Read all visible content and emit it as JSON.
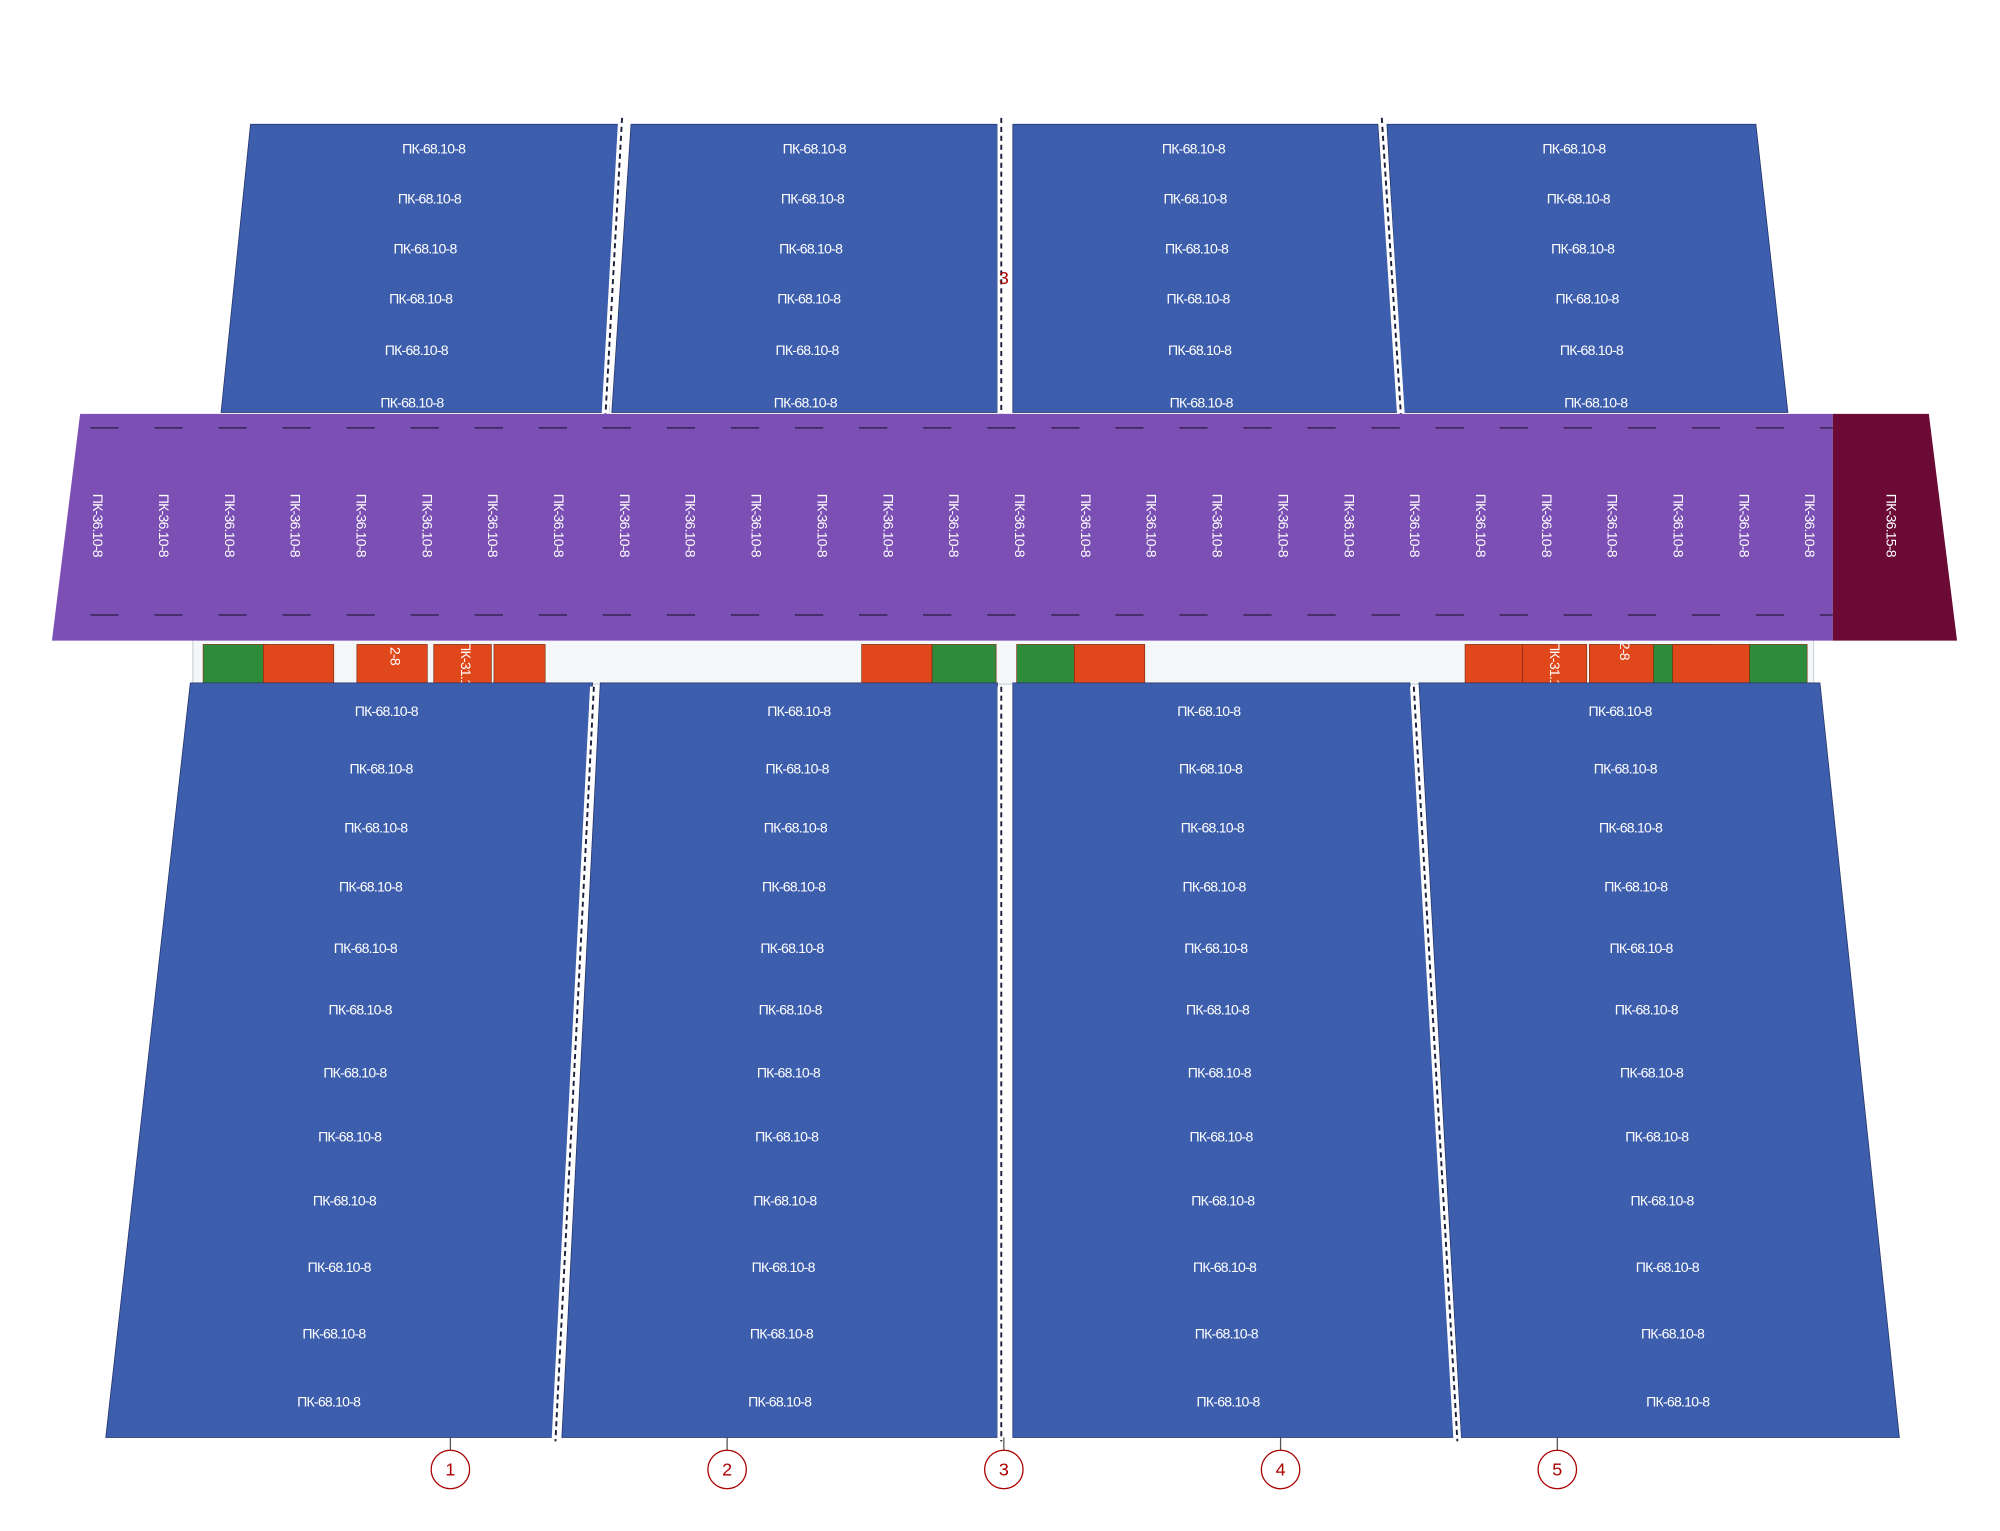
{
  "top_panels": [
    {
      "labels": [
        "ПК-68.10-8",
        "ПК-68.10-8",
        "ПК-68.10-8",
        "ПК-68.10-8",
        "ПК-68.10-8",
        "ПК-68.10-8"
      ]
    },
    {
      "labels": [
        "ПК-68.10-8",
        "ПК-68.10-8",
        "ПК-68.10-8",
        "ПК-68.10-8",
        "ПК-68.10-8",
        "ПК-68.10-8"
      ]
    },
    {
      "labels": [
        "ПК-68.10-8",
        "ПК-68.10-8",
        "ПК-68.10-8",
        "ПК-68.10-8",
        "ПК-68.10-8",
        "ПК-68.10-8"
      ]
    },
    {
      "labels": [
        "ПК-68.10-8",
        "ПК-68.10-8",
        "ПК-68.10-8",
        "ПК-68.10-8",
        "ПК-68.10-8",
        "ПК-68.10-8"
      ]
    }
  ],
  "band": {
    "labels": [
      "ПК-36.10-8",
      "ПК-36.10-8",
      "ПК-36.10-8",
      "ПК-36.10-8",
      "ПК-36.10-8",
      "ПК-36.10-8",
      "ПК-36.10-8",
      "ПК-36.10-8",
      "ПК-36.10-8",
      "ПК-36.10-8",
      "ПК-36.10-8",
      "ПК-36.10-8",
      "ПК-36.10-8",
      "ПК-36.10-8",
      "ПК-36.10-8",
      "ПК-36.10-8",
      "ПК-36.10-8",
      "ПК-36.10-8",
      "ПК-36.10-8",
      "ПК-36.10-8",
      "ПК-36.10-8",
      "ПК-36.10-8",
      "ПК-36.10-8",
      "ПК-36.10-8",
      "ПК-36.10-8",
      "ПК-36.10-8",
      "ПК-36.10-8"
    ],
    "end_label": "ПК-36.15-8"
  },
  "bottom_panels": [
    {
      "labels": [
        "ПК-68.10-8",
        "ПК-68.10-8",
        "ПК-68.10-8",
        "ПК-68.10-8",
        "ПК-68.10-8",
        "ПК-68.10-8",
        "ПК-68.10-8",
        "ПК-68.10-8",
        "ПК-68.10-8",
        "ПК-68.10-8",
        "ПК-68.10-8",
        "ПК-68.10-8"
      ]
    },
    {
      "labels": [
        "ПК-68.10-8",
        "ПК-68.10-8",
        "ПК-68.10-8",
        "ПК-68.10-8",
        "ПК-68.10-8",
        "ПК-68.10-8",
        "ПК-68.10-8",
        "ПК-68.10-8",
        "ПК-68.10-8",
        "ПК-68.10-8",
        "ПК-68.10-8",
        "ПК-68.10-8"
      ]
    },
    {
      "labels": [
        "ПК-68.10-8",
        "ПК-68.10-8",
        "ПК-68.10-8",
        "ПК-68.10-8",
        "ПК-68.10-8",
        "ПК-68.10-8",
        "ПК-68.10-8",
        "ПК-68.10-8",
        "ПК-68.10-8",
        "ПК-68.10-8",
        "ПК-68.10-8",
        "ПК-68.10-8"
      ]
    },
    {
      "labels": [
        "ПК-68.10-8",
        "ПК-68.10-8",
        "ПК-68.10-8",
        "ПК-68.10-8",
        "ПК-68.10-8",
        "ПК-68.10-8",
        "ПК-68.10-8",
        "ПК-68.10-8",
        "ПК-68.10-8",
        "ПК-68.10-8",
        "ПК-68.10-8",
        "ПК-68.10-8"
      ]
    }
  ],
  "strip_labels": [
    "2-8",
    "ПК-31.1",
    "ПК-31.1",
    "2-8"
  ],
  "center_mark": "3",
  "axis_marks": [
    "1",
    "2",
    "3",
    "4",
    "5"
  ]
}
